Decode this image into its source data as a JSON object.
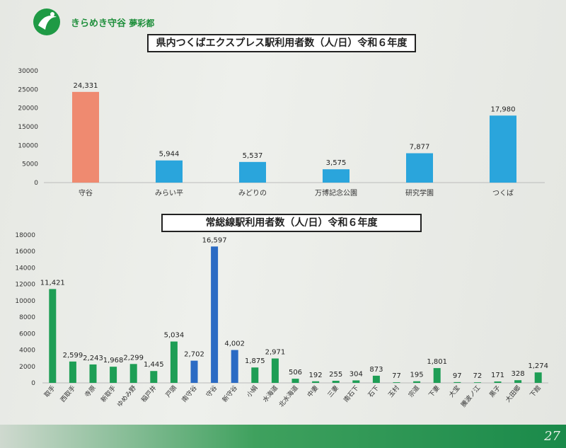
{
  "header": {
    "logo_text": "きらめき守谷",
    "logo_sub": "夢彩都",
    "page_number": "27"
  },
  "chart_data": [
    {
      "type": "bar",
      "title": "県内つくばエクスプレス駅利用者数（人/日）令和６年度",
      "categories": [
        "守谷",
        "みらい平",
        "みどりの",
        "万博記念公園",
        "研究学園",
        "つくば"
      ],
      "values": [
        24331,
        5944,
        5537,
        3575,
        7877,
        17980
      ],
      "value_labels": [
        "24,331",
        "5,944",
        "5,537",
        "3,575",
        "7,877",
        "17,980"
      ],
      "colors": [
        "#ef8a70",
        "#2aa5dc",
        "#2aa5dc",
        "#2aa5dc",
        "#2aa5dc",
        "#2aa5dc"
      ],
      "yticks": [
        0,
        5000,
        10000,
        15000,
        20000,
        25000,
        30000
      ],
      "ylim": [
        0,
        30000
      ]
    },
    {
      "type": "bar",
      "title": "常総線駅利用者数（人/日）令和６年度",
      "categories": [
        "取手",
        "西取手",
        "寺原",
        "新取手",
        "ゆめみ野",
        "稲戸井",
        "戸頭",
        "南守谷",
        "守谷",
        "新守谷",
        "小絹",
        "水海道",
        "北水海道",
        "中妻",
        "三妻",
        "南石下",
        "石下",
        "玉村",
        "宗道",
        "下妻",
        "大宝",
        "騰波ノ江",
        "黒子",
        "大田郷",
        "下館"
      ],
      "values": [
        11421,
        2599,
        2243,
        1968,
        2299,
        1445,
        5034,
        2702,
        16597,
        4002,
        1875,
        2971,
        506,
        192,
        255,
        304,
        873,
        77,
        195,
        1801,
        97,
        72,
        171,
        328,
        1274
      ],
      "value_labels": [
        "11,421",
        "2,599",
        "2,243",
        "1,968",
        "2,299",
        "1,445",
        "5,034",
        "2,702",
        "16,597",
        "4,002",
        "1,875",
        "2,971",
        "506",
        "192",
        "255",
        "304",
        "873",
        "77",
        "195",
        "1,801",
        "97",
        "72",
        "171",
        "328",
        "1,274"
      ],
      "colors": [
        "#1e9e55",
        "#1e9e55",
        "#1e9e55",
        "#1e9e55",
        "#1e9e55",
        "#1e9e55",
        "#1e9e55",
        "#2b6bc4",
        "#2b6bc4",
        "#2b6bc4",
        "#1e9e55",
        "#1e9e55",
        "#1e9e55",
        "#1e9e55",
        "#1e9e55",
        "#1e9e55",
        "#1e9e55",
        "#1e9e55",
        "#1e9e55",
        "#1e9e55",
        "#1e9e55",
        "#1e9e55",
        "#1e9e55",
        "#1e9e55",
        "#1e9e55"
      ],
      "yticks": [
        0,
        2000,
        4000,
        6000,
        8000,
        10000,
        12000,
        14000,
        16000,
        18000
      ],
      "ylim": [
        0,
        18000
      ]
    }
  ]
}
